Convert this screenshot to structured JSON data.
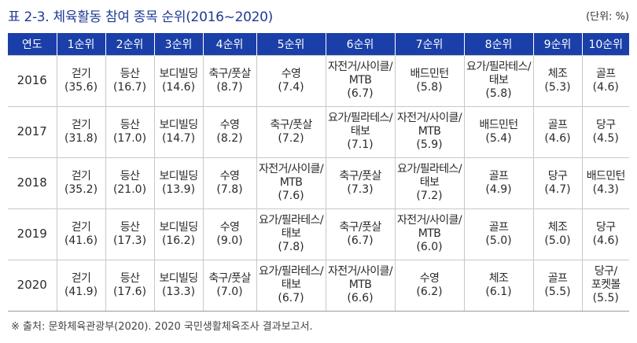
{
  "caption": {
    "title": "표 2-3. 체육활동 참여 종목 순위(2016~2020)",
    "unit": "(단위: %)"
  },
  "table": {
    "headers": [
      "연도",
      "1순위",
      "2순위",
      "3순위",
      "4순위",
      "5순위",
      "6순위",
      "7순위",
      "8순위",
      "9순위",
      "10순위"
    ],
    "rows": [
      {
        "year": "2016",
        "cells": [
          {
            "sport": "걷기",
            "pct": "(35.6)"
          },
          {
            "sport": "등산",
            "pct": "(16.7)"
          },
          {
            "sport": "보디빌딩",
            "pct": "(14.6)"
          },
          {
            "sport": "축구/풋살",
            "pct": "(8.7)"
          },
          {
            "sport": "수영",
            "pct": "(7.4)"
          },
          {
            "sport": "자전거/사이클/\nMTB",
            "pct": "(6.7)"
          },
          {
            "sport": "배드민턴",
            "pct": "(5.8)"
          },
          {
            "sport": "요가/필라테스/\n태보",
            "pct": "(5.8)"
          },
          {
            "sport": "체조",
            "pct": "(5.3)"
          },
          {
            "sport": "골프",
            "pct": "(4.6)"
          }
        ]
      },
      {
        "year": "2017",
        "cells": [
          {
            "sport": "걷기",
            "pct": "(31.8)"
          },
          {
            "sport": "등산",
            "pct": "(17.0)"
          },
          {
            "sport": "보디빌딩",
            "pct": "(14.7)"
          },
          {
            "sport": "수영",
            "pct": "(8.2)"
          },
          {
            "sport": "축구/풋살",
            "pct": "(7.2)"
          },
          {
            "sport": "요가/필라테스/\n태보",
            "pct": "(7.1)"
          },
          {
            "sport": "자전거/사이클/\nMTB",
            "pct": "(5.9)"
          },
          {
            "sport": "배드민턴",
            "pct": "(5.4)"
          },
          {
            "sport": "골프",
            "pct": "(4.6)"
          },
          {
            "sport": "당구",
            "pct": "(4.5)"
          }
        ]
      },
      {
        "year": "2018",
        "cells": [
          {
            "sport": "걷기",
            "pct": "(35.2)"
          },
          {
            "sport": "등산",
            "pct": "(21.0)"
          },
          {
            "sport": "보디빌딩",
            "pct": "(13.9)"
          },
          {
            "sport": "수영",
            "pct": "(7.8)"
          },
          {
            "sport": "자전거/사이클/\nMTB",
            "pct": "(7.6)"
          },
          {
            "sport": "축구/풋살",
            "pct": "(7.3)"
          },
          {
            "sport": "요가/필라테스/\n태보",
            "pct": "(7.2)"
          },
          {
            "sport": "골프",
            "pct": "(4.9)"
          },
          {
            "sport": "당구",
            "pct": "(4.7)"
          },
          {
            "sport": "배드민턴",
            "pct": "(4.3)"
          }
        ]
      },
      {
        "year": "2019",
        "cells": [
          {
            "sport": "걷기",
            "pct": "(41.6)"
          },
          {
            "sport": "등산",
            "pct": "(17.3)"
          },
          {
            "sport": "보디빌딩",
            "pct": "(16.2)"
          },
          {
            "sport": "수영",
            "pct": "(9.0)"
          },
          {
            "sport": "요가/필라테스/\n태보",
            "pct": "(7.8)"
          },
          {
            "sport": "축구/풋살",
            "pct": "(6.7)"
          },
          {
            "sport": "자전거/사이클/\nMTB",
            "pct": "(6.0)"
          },
          {
            "sport": "골프",
            "pct": "(5.0)"
          },
          {
            "sport": "체조",
            "pct": "(5.0)"
          },
          {
            "sport": "당구",
            "pct": "(4.6)"
          }
        ]
      },
      {
        "year": "2020",
        "cells": [
          {
            "sport": "걷기",
            "pct": "(41.9)"
          },
          {
            "sport": "등산",
            "pct": "(17.6)"
          },
          {
            "sport": "보디빌딩",
            "pct": "(13.3)"
          },
          {
            "sport": "축구/풋살",
            "pct": "(7.0)"
          },
          {
            "sport": "요가/필라테스/\n태보",
            "pct": "(6.7)"
          },
          {
            "sport": "자전거/사이클/\nMTB",
            "pct": "(6.6)"
          },
          {
            "sport": "수영",
            "pct": "(6.2)"
          },
          {
            "sport": "체조",
            "pct": "(6.1)"
          },
          {
            "sport": "골프",
            "pct": "(5.5)"
          },
          {
            "sport": "당구/\n포켓볼",
            "pct": "(5.5)"
          }
        ]
      }
    ]
  },
  "source": "※ 출처: 문화체육관광부(2020). 2020 국민생활체육조사 결과보고서.",
  "colors": {
    "header_bg": "#1a3fa8",
    "header_text": "#ffffff",
    "title_text": "#1f3a93"
  }
}
